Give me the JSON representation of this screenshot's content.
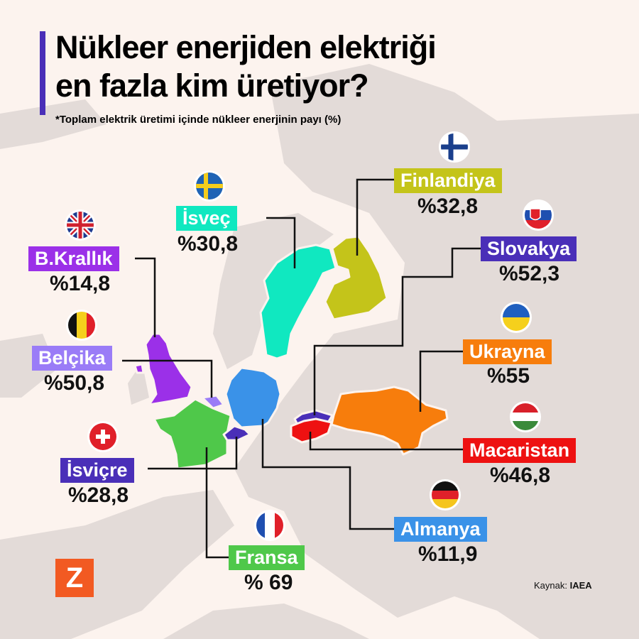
{
  "title_line1": "Nükleer enerjiden elektriği",
  "title_line2": "en fazla kim üretiyor?",
  "subtitle": "*Toplam elektrik üretimi içinde nükleer enerjinin payı (%)",
  "countries": {
    "uk": {
      "name": "B.Krallık",
      "value": "%14,8",
      "color": "#9b30e8",
      "flag": "uk-flag-icon"
    },
    "sweden": {
      "name": "İsveç",
      "value": "%30,8",
      "color": "#10e8c0",
      "flag": "sweden-flag-icon"
    },
    "finland": {
      "name": "Finlandiya",
      "value": "%32,8",
      "color": "#c4c41a",
      "flag": "finland-flag-icon"
    },
    "slovakia": {
      "name": "Slovakya",
      "value": "%52,3",
      "color": "#4a2fb8",
      "flag": "slovakia-flag-icon"
    },
    "belgium": {
      "name": "Belçika",
      "value": "%50,8",
      "color": "#9a7cf7",
      "flag": "belgium-flag-icon"
    },
    "ukraine": {
      "name": "Ukrayna",
      "value": "%55",
      "color": "#f77d0c",
      "flag": "ukraine-flag-icon"
    },
    "hungary": {
      "name": "Macaristan",
      "value": "%46,8",
      "color": "#ee1111",
      "flag": "hungary-flag-icon"
    },
    "switzerland": {
      "name": "İsviçre",
      "value": "%28,8",
      "color": "#4a2fb8",
      "flag": "switzerland-flag-icon"
    },
    "germany": {
      "name": "Almanya",
      "value": "%11,9",
      "color": "#3a92e8",
      "flag": "germany-flag-icon"
    },
    "france": {
      "name": "Fransa",
      "value": "% 69",
      "color": "#4fc84a",
      "flag": "france-flag-icon"
    }
  },
  "logo": "Z",
  "source_label": "Kaynak:",
  "source_value": "IAEA",
  "colors": {
    "background": "#fcf3ee",
    "land": "#e3dbd8",
    "accent": "#4a2fb8"
  }
}
